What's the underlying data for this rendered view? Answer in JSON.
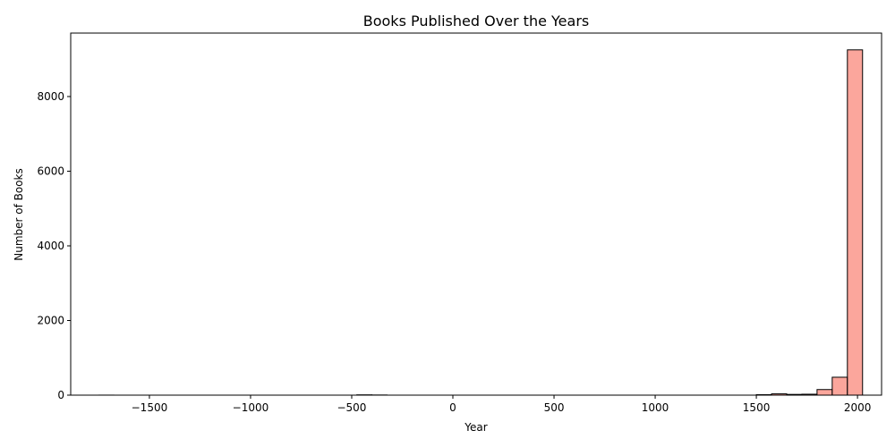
{
  "chart_data": {
    "type": "bar",
    "title": "Books Published Over the Years",
    "xlabel": "Year",
    "ylabel": "Number of Books",
    "xlim": [
      -1889,
      2119
    ],
    "ylim": [
      0,
      9700
    ],
    "xticks": [
      -1500,
      -1000,
      -500,
      0,
      500,
      1000,
      1500,
      2000
    ],
    "xtick_labels": [
      "−1500",
      "−1000",
      "−500",
      "0",
      "500",
      "1000",
      "1500",
      "2000"
    ],
    "yticks": [
      0,
      2000,
      4000,
      6000,
      8000
    ],
    "ytick_labels": [
      "0",
      "2000",
      "4000",
      "6000",
      "8000"
    ],
    "bar_color": "#fa8072",
    "bar_alpha": 0.7,
    "edge_color": "#000000",
    "grid": false,
    "bins": [
      {
        "x0": -1750,
        "x1": -1675,
        "value": 1
      },
      {
        "x0": -475,
        "x1": -400,
        "value": 8
      },
      {
        "x0": -400,
        "x1": -325,
        "value": 4
      },
      {
        "x0": 1500,
        "x1": 1575,
        "value": 12
      },
      {
        "x0": 1575,
        "x1": 1650,
        "value": 35
      },
      {
        "x0": 1650,
        "x1": 1725,
        "value": 20
      },
      {
        "x0": 1725,
        "x1": 1800,
        "value": 25
      },
      {
        "x0": 1800,
        "x1": 1875,
        "value": 150
      },
      {
        "x0": 1875,
        "x1": 1950,
        "value": 480
      },
      {
        "x0": 1950,
        "x1": 2025,
        "value": 9250
      }
    ]
  }
}
